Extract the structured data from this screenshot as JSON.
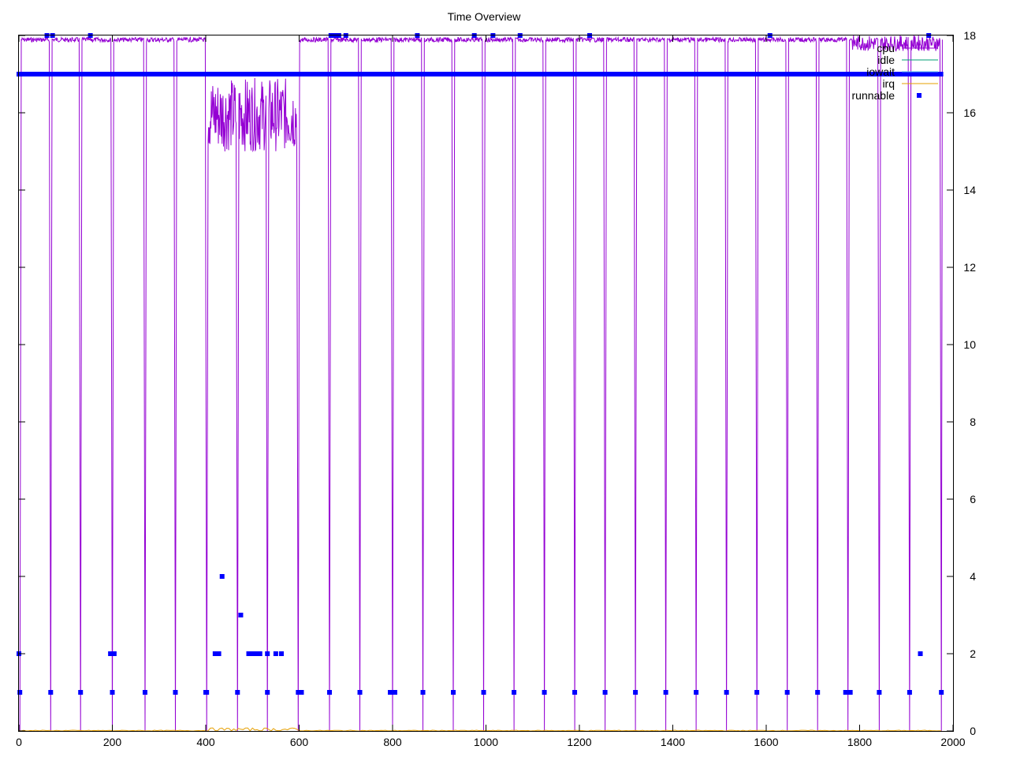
{
  "chart_data": {
    "type": "line",
    "title": "Time Overview",
    "xlabel": "",
    "ylabel": "",
    "xlim": [
      0,
      2000
    ],
    "ylim": [
      0,
      18
    ],
    "x_ticks": [
      "0",
      "200",
      "400",
      "600",
      "800",
      "1000",
      "1200",
      "1400",
      "1600",
      "1800",
      "2000"
    ],
    "y_ticks": [
      "0",
      "2",
      "4",
      "6",
      "8",
      "10",
      "12",
      "14",
      "16",
      "18"
    ],
    "y_axis_side": "right",
    "grid": false,
    "legend_position": "top-right",
    "series": [
      {
        "name": "cpu",
        "color": "#9400d3",
        "style": "line"
      },
      {
        "name": "idle",
        "color": "#009e73",
        "style": "line"
      },
      {
        "name": "iowait",
        "color": "#56b4e9",
        "style": "line"
      },
      {
        "name": "irq",
        "color": "#e69f00",
        "style": "line"
      },
      {
        "name": "runnable",
        "color": "#0000ff",
        "style": "points"
      }
    ],
    "cpu_drop_x": [
      2,
      68,
      132,
      200,
      270,
      335,
      402,
      468,
      532,
      598,
      665,
      730,
      800,
      865,
      930,
      995,
      1060,
      1125,
      1190,
      1255,
      1320,
      1385,
      1450,
      1515,
      1580,
      1645,
      1710,
      1775,
      1842,
      1907,
      1975
    ],
    "cpu_noisy_segments": [
      {
        "x_start": 405,
        "x_end": 598,
        "y_min": 15.0,
        "y_max": 16.9
      },
      {
        "x_start": 1785,
        "x_end": 1975,
        "y_min": 17.6,
        "y_max": 18.0
      }
    ],
    "cpu_plateau_y": 17.95,
    "runnable_baseline_y": 17,
    "runnable_points": [
      {
        "x": 0,
        "y": 2
      },
      {
        "x": 2,
        "y": 1
      },
      {
        "x": 68,
        "y": 1
      },
      {
        "x": 132,
        "y": 1
      },
      {
        "x": 200,
        "y": 1
      },
      {
        "x": 196,
        "y": 2
      },
      {
        "x": 204,
        "y": 2
      },
      {
        "x": 270,
        "y": 1
      },
      {
        "x": 335,
        "y": 1
      },
      {
        "x": 402,
        "y": 1
      },
      {
        "x": 400,
        "y": 1
      },
      {
        "x": 420,
        "y": 2
      },
      {
        "x": 428,
        "y": 2
      },
      {
        "x": 435,
        "y": 4
      },
      {
        "x": 468,
        "y": 1
      },
      {
        "x": 475,
        "y": 3
      },
      {
        "x": 492,
        "y": 2
      },
      {
        "x": 500,
        "y": 2
      },
      {
        "x": 508,
        "y": 2
      },
      {
        "x": 516,
        "y": 2
      },
      {
        "x": 532,
        "y": 1
      },
      {
        "x": 532,
        "y": 2
      },
      {
        "x": 550,
        "y": 2
      },
      {
        "x": 562,
        "y": 2
      },
      {
        "x": 598,
        "y": 1
      },
      {
        "x": 605,
        "y": 1
      },
      {
        "x": 665,
        "y": 1
      },
      {
        "x": 730,
        "y": 1
      },
      {
        "x": 795,
        "y": 1
      },
      {
        "x": 805,
        "y": 1
      },
      {
        "x": 865,
        "y": 1
      },
      {
        "x": 930,
        "y": 1
      },
      {
        "x": 995,
        "y": 1
      },
      {
        "x": 1060,
        "y": 1
      },
      {
        "x": 1125,
        "y": 1
      },
      {
        "x": 1190,
        "y": 1
      },
      {
        "x": 1255,
        "y": 1
      },
      {
        "x": 1320,
        "y": 1
      },
      {
        "x": 1385,
        "y": 1
      },
      {
        "x": 1450,
        "y": 1
      },
      {
        "x": 1515,
        "y": 1
      },
      {
        "x": 1580,
        "y": 1
      },
      {
        "x": 1645,
        "y": 1
      },
      {
        "x": 1710,
        "y": 1
      },
      {
        "x": 1770,
        "y": 1
      },
      {
        "x": 1780,
        "y": 1
      },
      {
        "x": 1842,
        "y": 1
      },
      {
        "x": 1907,
        "y": 1
      },
      {
        "x": 1930,
        "y": 2
      },
      {
        "x": 1975,
        "y": 1
      },
      {
        "x": 60,
        "y": 18
      },
      {
        "x": 72,
        "y": 18
      },
      {
        "x": 153,
        "y": 18
      },
      {
        "x": 668,
        "y": 18
      },
      {
        "x": 676,
        "y": 18
      },
      {
        "x": 685,
        "y": 18
      },
      {
        "x": 700,
        "y": 18
      },
      {
        "x": 853,
        "y": 18
      },
      {
        "x": 975,
        "y": 18
      },
      {
        "x": 1015,
        "y": 18
      },
      {
        "x": 1073,
        "y": 18
      },
      {
        "x": 1222,
        "y": 18
      },
      {
        "x": 1608,
        "y": 18
      },
      {
        "x": 1948,
        "y": 18
      }
    ]
  }
}
